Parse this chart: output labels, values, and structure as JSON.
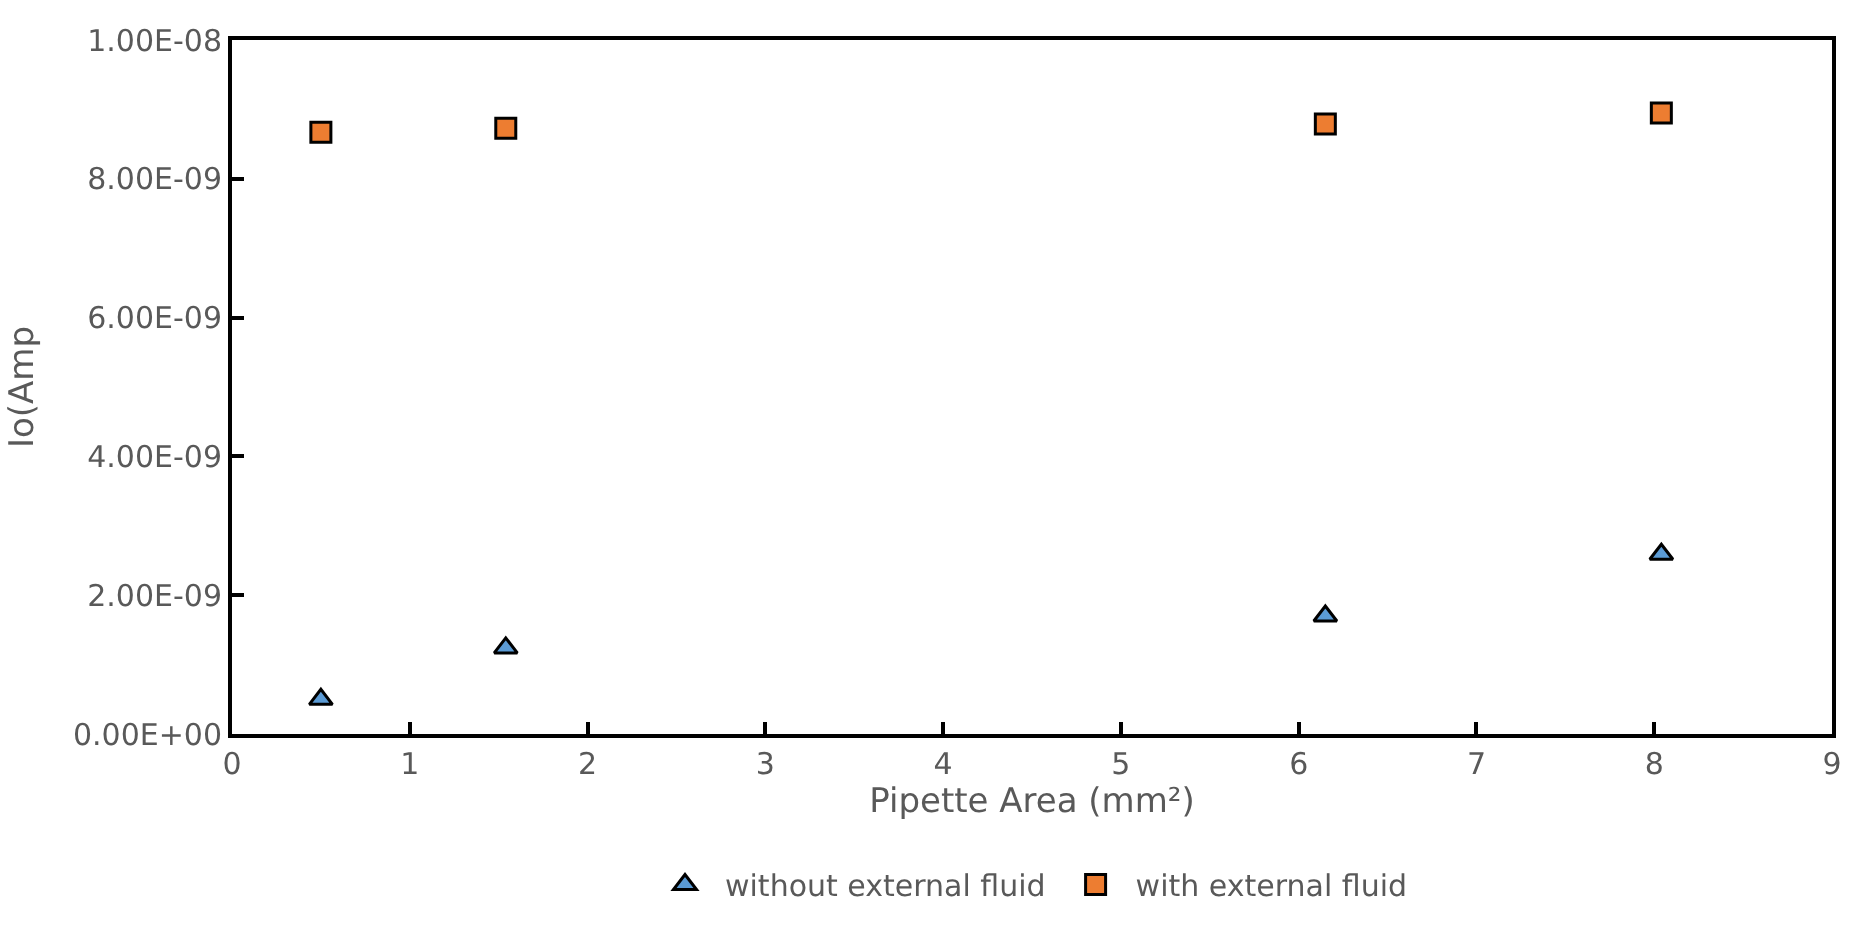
{
  "chart_data": {
    "type": "scatter",
    "xlabel": "Pipette Area (mm²)",
    "ylabel": "Io(Amp",
    "xlim": [
      0,
      9
    ],
    "xticks": [
      0,
      1,
      2,
      3,
      4,
      5,
      6,
      7,
      8,
      9
    ],
    "ylim": [
      0,
      1e-08
    ],
    "yticks": [
      {
        "value": 0,
        "label": "0.00E+00"
      },
      {
        "value": 2e-09,
        "label": "2.00E-09"
      },
      {
        "value": 4e-09,
        "label": "4.00E-09"
      },
      {
        "value": 6e-09,
        "label": "6.00E-09"
      },
      {
        "value": 8e-09,
        "label": "8.00E-09"
      },
      {
        "value": 1e-08,
        "label": "1.00E-08"
      }
    ],
    "legend": "bottom",
    "series": [
      {
        "name": "without external fluid",
        "color": "#5b9bd5",
        "marker": "triangle",
        "x": [
          0.5,
          1.54,
          6.15,
          8.04
        ],
        "values": [
          5e-10,
          1.24e-09,
          1.7e-09,
          2.59e-09
        ]
      },
      {
        "name": "with external fluid",
        "color": "#ed7d31",
        "marker": "square",
        "x": [
          0.5,
          1.54,
          6.15,
          8.04
        ],
        "values": [
          8.67e-09,
          8.73e-09,
          8.79e-09,
          8.95e-09
        ]
      }
    ]
  }
}
